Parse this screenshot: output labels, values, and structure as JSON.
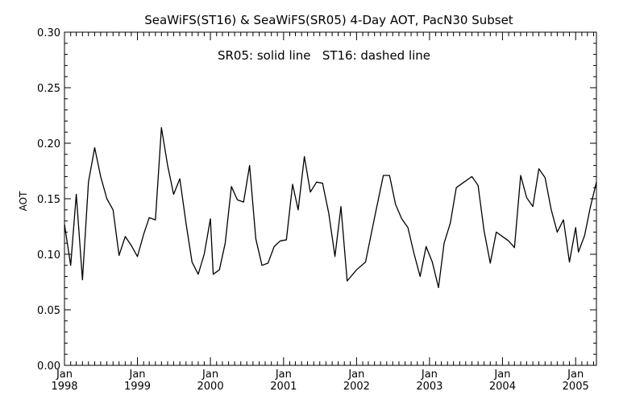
{
  "chart_data": {
    "type": "line",
    "title": "SeaWiFS(ST16) & SeaWiFS(SR05) 4-Day AOT, PacN30 Subset",
    "annotation": "SR05: solid line   ST16: dashed line",
    "ylabel": "AOT",
    "xlabel": "",
    "xlim": [
      "1998-01-01",
      "2005-04-15"
    ],
    "ylim": [
      0.0,
      0.3
    ],
    "y_ticks": [
      "0.00",
      "0.05",
      "0.10",
      "0.15",
      "0.20",
      "0.25",
      "0.30"
    ],
    "x_ticks": [
      {
        "month": "Jan",
        "year": "1998",
        "date": "1998-01-01"
      },
      {
        "month": "Jan",
        "year": "1999",
        "date": "1999-01-01"
      },
      {
        "month": "Jan",
        "year": "2000",
        "date": "2000-01-01"
      },
      {
        "month": "Jan",
        "year": "2001",
        "date": "2001-01-01"
      },
      {
        "month": "Jan",
        "year": "2002",
        "date": "2002-01-01"
      },
      {
        "month": "Jan",
        "year": "2003",
        "date": "2003-01-01"
      },
      {
        "month": "Jan",
        "year": "2004",
        "date": "2004-01-01"
      },
      {
        "month": "Jan",
        "year": "2005",
        "date": "2005-01-01"
      }
    ],
    "grid": false,
    "series": [
      {
        "line_style": "solid",
        "color": "#000000",
        "points": [
          [
            "1998-01-01",
            0.127
          ],
          [
            "1998-02-01",
            0.09
          ],
          [
            "1998-03-01",
            0.154
          ],
          [
            "1998-04-01",
            0.077
          ],
          [
            "1998-05-01",
            0.165
          ],
          [
            "1998-06-01",
            0.196
          ],
          [
            "1998-07-01",
            0.17
          ],
          [
            "1998-08-01",
            0.15
          ],
          [
            "1998-09-01",
            0.14
          ],
          [
            "1998-10-01",
            0.099
          ],
          [
            "1998-11-01",
            0.116
          ],
          [
            "1998-12-01",
            0.108
          ],
          [
            "1999-01-01",
            0.098
          ],
          [
            "1999-02-01",
            0.118
          ],
          [
            "1999-03-01",
            0.133
          ],
          [
            "1999-04-01",
            0.131
          ],
          [
            "1999-05-01",
            0.214
          ],
          [
            "1999-06-01",
            0.18
          ],
          [
            "1999-07-01",
            0.154
          ],
          [
            "1999-08-01",
            0.168
          ],
          [
            "1999-09-01",
            0.128
          ],
          [
            "1999-10-01",
            0.093
          ],
          [
            "1999-11-01",
            0.082
          ],
          [
            "1999-12-01",
            0.1
          ],
          [
            "2000-01-01",
            0.132
          ],
          [
            "2000-01-15",
            0.082
          ],
          [
            "2000-02-15",
            0.086
          ],
          [
            "2000-03-15",
            0.11
          ],
          [
            "2000-04-15",
            0.161
          ],
          [
            "2000-05-15",
            0.149
          ],
          [
            "2000-06-15",
            0.147
          ],
          [
            "2000-07-15",
            0.18
          ],
          [
            "2000-08-15",
            0.114
          ],
          [
            "2000-09-15",
            0.09
          ],
          [
            "2000-10-15",
            0.092
          ],
          [
            "2000-11-15",
            0.107
          ],
          [
            "2000-12-15",
            0.112
          ],
          [
            "2001-01-15",
            0.113
          ],
          [
            "2001-02-15",
            0.163
          ],
          [
            "2001-03-15",
            0.14
          ],
          [
            "2001-04-15",
            0.188
          ],
          [
            "2001-05-15",
            0.156
          ],
          [
            "2001-06-15",
            0.165
          ],
          [
            "2001-07-15",
            0.164
          ],
          [
            "2001-08-15",
            0.137
          ],
          [
            "2001-09-15",
            0.098
          ],
          [
            "2001-10-15",
            0.143
          ],
          [
            "2001-11-15",
            0.076
          ],
          [
            "2002-01-01",
            0.086
          ],
          [
            "2002-02-15",
            0.093
          ],
          [
            "2002-04-01",
            0.133
          ],
          [
            "2002-05-15",
            0.171
          ],
          [
            "2002-06-15",
            0.171
          ],
          [
            "2002-07-15",
            0.145
          ],
          [
            "2002-08-15",
            0.132
          ],
          [
            "2002-09-15",
            0.124
          ],
          [
            "2002-10-15",
            0.101
          ],
          [
            "2002-11-15",
            0.08
          ],
          [
            "2002-12-15",
            0.107
          ],
          [
            "2003-01-15",
            0.093
          ],
          [
            "2003-02-15",
            0.07
          ],
          [
            "2003-03-15",
            0.11
          ],
          [
            "2003-04-15",
            0.128
          ],
          [
            "2003-05-15",
            0.16
          ],
          [
            "2003-06-15",
            0.164
          ],
          [
            "2003-08-01",
            0.17
          ],
          [
            "2003-09-01",
            0.162
          ],
          [
            "2003-10-01",
            0.121
          ],
          [
            "2003-11-01",
            0.092
          ],
          [
            "2003-12-01",
            0.12
          ],
          [
            "2004-01-01",
            0.116
          ],
          [
            "2004-02-01",
            0.112
          ],
          [
            "2004-03-01",
            0.106
          ],
          [
            "2004-04-01",
            0.171
          ],
          [
            "2004-05-01",
            0.151
          ],
          [
            "2004-06-01",
            0.143
          ],
          [
            "2004-07-01",
            0.177
          ],
          [
            "2004-08-01",
            0.169
          ],
          [
            "2004-09-01",
            0.14
          ],
          [
            "2004-10-01",
            0.12
          ],
          [
            "2004-11-01",
            0.131
          ],
          [
            "2004-12-01",
            0.093
          ],
          [
            "2005-01-01",
            0.124
          ],
          [
            "2005-01-15",
            0.102
          ],
          [
            "2005-02-15",
            0.117
          ],
          [
            "2005-03-15",
            0.142
          ],
          [
            "2005-04-15",
            0.165
          ]
        ]
      }
    ]
  }
}
